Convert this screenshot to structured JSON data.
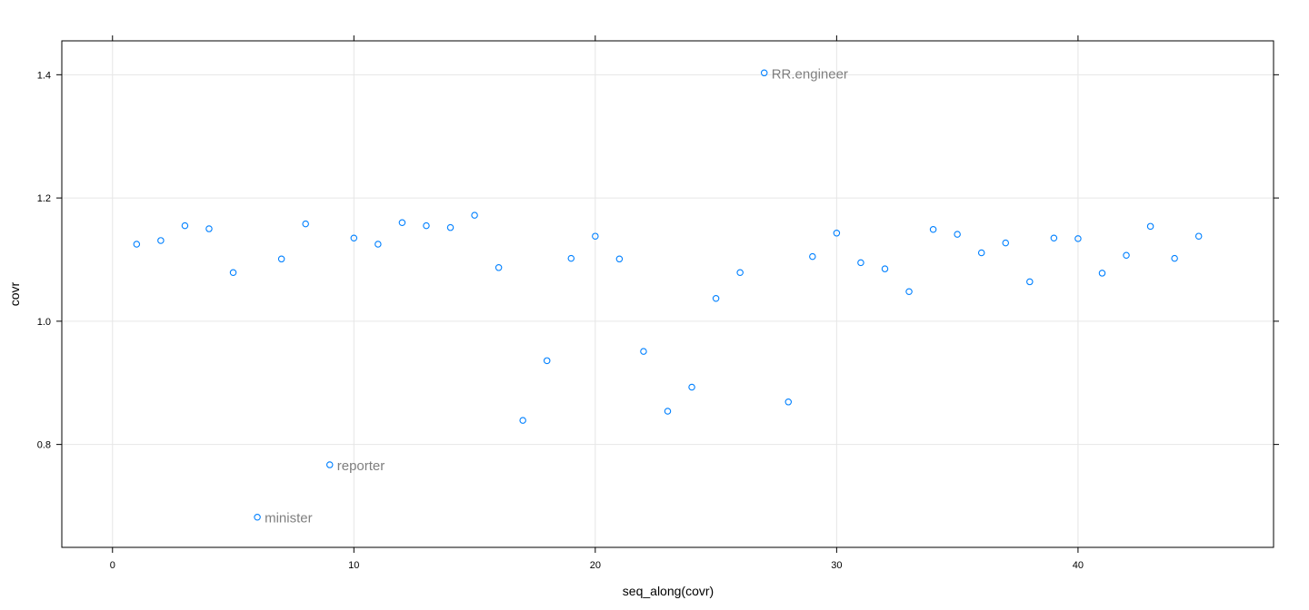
{
  "chart_data": {
    "type": "scatter",
    "xlabel": "seq_along(covr)",
    "ylabel": "covr",
    "xlim": [
      -2.1,
      48.1
    ],
    "ylim": [
      0.633,
      1.455
    ],
    "x_ticks": [
      0,
      10,
      20,
      30,
      40
    ],
    "y_ticks": [
      0.8,
      1.0,
      1.2,
      1.4
    ],
    "x_tick_labels": [
      "0",
      "10",
      "20",
      "30",
      "40"
    ],
    "y_tick_labels": [
      "0.8",
      "1.0",
      "1.2",
      "1.4"
    ],
    "grid": true,
    "point_color": "#0080ff",
    "annotation_color": "#7f7f7f",
    "series": [
      {
        "x": [
          1,
          2,
          3,
          4,
          5,
          6,
          7,
          8,
          9,
          10,
          11,
          12,
          13,
          14,
          15,
          16,
          17,
          18,
          19,
          20,
          21,
          22,
          23,
          24,
          25,
          26,
          27,
          28,
          29,
          30,
          31,
          32,
          33,
          34,
          35,
          36,
          37,
          38,
          39,
          40,
          41,
          42,
          43,
          44,
          45
        ],
        "values": [
          1.125,
          1.131,
          1.155,
          1.15,
          1.079,
          0.682,
          1.101,
          1.158,
          0.767,
          1.135,
          1.125,
          1.16,
          1.155,
          1.152,
          1.172,
          1.087,
          0.839,
          0.936,
          1.102,
          1.138,
          1.101,
          0.951,
          0.854,
          0.893,
          1.037,
          1.079,
          1.403,
          0.869,
          1.105,
          1.143,
          1.095,
          1.085,
          1.048,
          1.149,
          1.141,
          1.111,
          1.127,
          1.064,
          1.135,
          1.134,
          1.078,
          1.107,
          1.154,
          1.102,
          1.138
        ]
      }
    ],
    "annotations": [
      {
        "x": 6,
        "y": 0.682,
        "text": "minister"
      },
      {
        "x": 9,
        "y": 0.767,
        "text": "reporter"
      },
      {
        "x": 27,
        "y": 1.403,
        "text": "RR.engineer"
      }
    ]
  }
}
